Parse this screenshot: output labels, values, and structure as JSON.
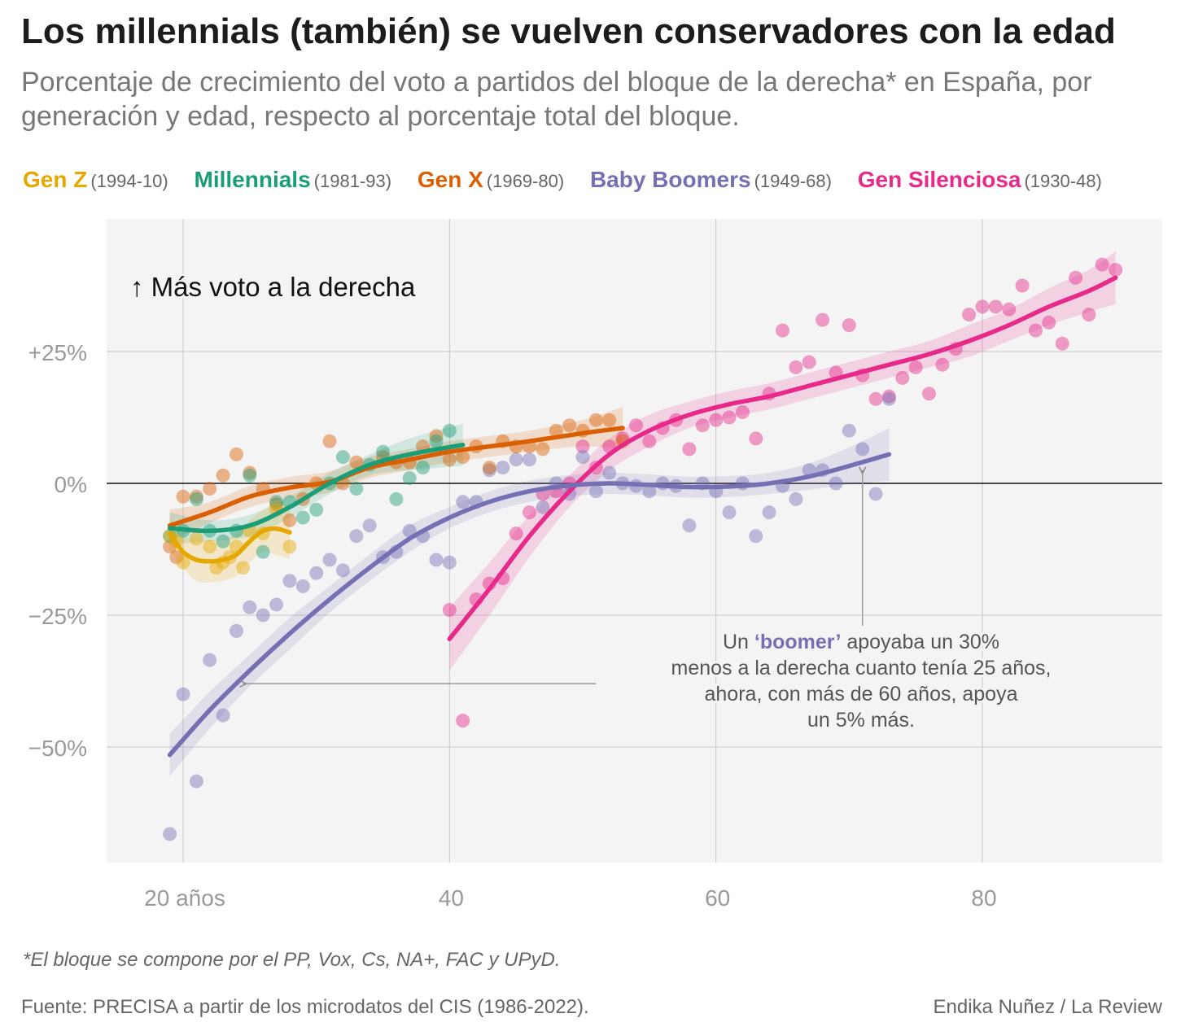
{
  "header": {
    "title": "Los millennials (también) se vuelven conservadores con la edad",
    "subtitle": "Porcentaje de crecimiento del voto a partidos del bloque de la derecha* en España, por generación y edad, respecto al porcentaje total del bloque."
  },
  "legend": [
    {
      "name": "Gen Z",
      "years": "(1994-10)",
      "color": "#e6a800"
    },
    {
      "name": "Millennials",
      "years": "(1981-93)",
      "color": "#1b9e77"
    },
    {
      "name": "Gen X",
      "years": "(1969-80)",
      "color": "#d95f02"
    },
    {
      "name": "Baby Boomers",
      "years": "(1949-68)",
      "color": "#7570b3"
    },
    {
      "name": "Gen Silenciosa",
      "years": "(1930-48)",
      "color": "#e7298a"
    }
  ],
  "chart_data": {
    "type": "scatter",
    "xlim": [
      15.6,
      93
    ],
    "ylim": [
      -72,
      50.5
    ],
    "x_ticks": [
      {
        "value": 20,
        "label": "20 años"
      },
      {
        "value": 40,
        "label": "40"
      },
      {
        "value": 60,
        "label": "60"
      },
      {
        "value": 80,
        "label": "80"
      }
    ],
    "y_ticks": [
      {
        "value": 25,
        "label": "+25%"
      },
      {
        "value": 0,
        "label": "0%"
      },
      {
        "value": -25,
        "label": "−25%"
      },
      {
        "value": -50,
        "label": "−50%"
      }
    ],
    "grid": true,
    "zero_line": true,
    "annotation_top": "↑ Más voto a la derecha",
    "annotation": {
      "lines": [
        [
          "Un ",
          "‘boomer’",
          " apoyaba un 30%"
        ],
        [
          "menos a la derecha cuanto tenía 25 años,"
        ],
        [
          "ahora, con más de 60 años, apoya"
        ],
        [
          "un 5% más."
        ]
      ],
      "arrow_left": {
        "from": [
          51,
          -38
        ],
        "to": [
          24.5,
          -38
        ]
      },
      "arrow_up": {
        "from": [
          71,
          -27
        ],
        "to": [
          71,
          2.5
        ]
      }
    },
    "series": [
      {
        "name": "Gen Z",
        "color": "#e6a800",
        "points": [
          [
            19,
            -10
          ],
          [
            19.5,
            -11
          ],
          [
            20,
            -15
          ],
          [
            21,
            -10.5
          ],
          [
            22,
            -12
          ],
          [
            22.5,
            -16
          ],
          [
            23,
            -15
          ],
          [
            23.5,
            -14
          ],
          [
            24,
            -12
          ],
          [
            24.5,
            -16
          ],
          [
            25,
            -9
          ],
          [
            26,
            -9.5
          ],
          [
            27,
            -5
          ],
          [
            28,
            -12
          ]
        ],
        "trend": [
          [
            19,
            -9.5
          ],
          [
            20,
            -13
          ],
          [
            21,
            -14.5
          ],
          [
            22,
            -14.8
          ],
          [
            23,
            -14.5
          ],
          [
            24,
            -13.5
          ],
          [
            25,
            -11
          ],
          [
            26,
            -9
          ],
          [
            27,
            -8.6
          ],
          [
            28,
            -9.3
          ]
        ],
        "band": [
          3,
          3,
          4,
          4,
          4,
          4,
          4,
          4,
          5,
          5
        ]
      },
      {
        "name": "Millennials",
        "color": "#1b9e77",
        "points": [
          [
            19,
            -10
          ],
          [
            20,
            -9
          ],
          [
            21,
            -3
          ],
          [
            22,
            -9
          ],
          [
            23,
            -11
          ],
          [
            24,
            -9
          ],
          [
            25,
            1.5
          ],
          [
            26,
            -13
          ],
          [
            27,
            -3.5
          ],
          [
            28,
            -3.5
          ],
          [
            29,
            -6.5
          ],
          [
            30,
            -5
          ],
          [
            31,
            0
          ],
          [
            32,
            5
          ],
          [
            33,
            -1
          ],
          [
            34,
            3.5
          ],
          [
            35,
            6
          ],
          [
            36,
            -3
          ],
          [
            37,
            1
          ],
          [
            38,
            3
          ],
          [
            39,
            8
          ],
          [
            40,
            10
          ]
        ],
        "trend": [
          [
            19,
            -8.5
          ],
          [
            22,
            -9
          ],
          [
            25,
            -8
          ],
          [
            28,
            -4.5
          ],
          [
            31,
            0
          ],
          [
            34,
            3.5
          ],
          [
            37,
            5.5
          ],
          [
            41,
            7.3
          ]
        ],
        "band": [
          3,
          2,
          2,
          2,
          2,
          2,
          3,
          4
        ]
      },
      {
        "name": "Gen X",
        "color": "#d95f02",
        "points": [
          [
            19,
            -12
          ],
          [
            19.5,
            -14
          ],
          [
            20,
            -2.5
          ],
          [
            21,
            -2.5
          ],
          [
            22,
            -1
          ],
          [
            23,
            1.5
          ],
          [
            24,
            5.5
          ],
          [
            25,
            2
          ],
          [
            26,
            -1
          ],
          [
            27,
            -4
          ],
          [
            28,
            -7
          ],
          [
            29,
            -3
          ],
          [
            30,
            0
          ],
          [
            31,
            8
          ],
          [
            32,
            0
          ],
          [
            33,
            4
          ],
          [
            35,
            5
          ],
          [
            36,
            4
          ],
          [
            37,
            4
          ],
          [
            38,
            7
          ],
          [
            39,
            9
          ],
          [
            40,
            4.5
          ],
          [
            41,
            5
          ],
          [
            42,
            7
          ],
          [
            43,
            3
          ],
          [
            44,
            8
          ],
          [
            45,
            7
          ],
          [
            46,
            7
          ],
          [
            47,
            6.5
          ],
          [
            48,
            10
          ],
          [
            49,
            11
          ],
          [
            50,
            10
          ],
          [
            51,
            12
          ],
          [
            52,
            12
          ],
          [
            53,
            8
          ]
        ],
        "trend": [
          [
            19,
            -8
          ],
          [
            22,
            -5.5
          ],
          [
            25,
            -2.5
          ],
          [
            28,
            -0.8
          ],
          [
            31,
            0.3
          ],
          [
            34,
            3
          ],
          [
            37,
            4.5
          ],
          [
            40,
            6
          ],
          [
            43,
            7
          ],
          [
            46,
            8
          ],
          [
            50,
            9.5
          ],
          [
            53,
            10.5
          ]
        ],
        "band": [
          3,
          2,
          2,
          2,
          2,
          2,
          2,
          2,
          2,
          2,
          2.5,
          4
        ]
      },
      {
        "name": "Baby Boomers",
        "color": "#7570b3",
        "points": [
          [
            19,
            -66.5
          ],
          [
            20,
            -40
          ],
          [
            21,
            -56.5
          ],
          [
            22,
            -33.5
          ],
          [
            23,
            -44
          ],
          [
            24,
            -28
          ],
          [
            25,
            -23.5
          ],
          [
            26,
            -25
          ],
          [
            27,
            -23
          ],
          [
            28,
            -18.5
          ],
          [
            29,
            -19.5
          ],
          [
            30,
            -17
          ],
          [
            31,
            -14.5
          ],
          [
            32,
            -16.5
          ],
          [
            33,
            -10
          ],
          [
            34,
            -8
          ],
          [
            35,
            -14
          ],
          [
            36,
            -13
          ],
          [
            37,
            -9
          ],
          [
            38,
            -10
          ],
          [
            39,
            -14.5
          ],
          [
            40,
            -15
          ],
          [
            41,
            -3.5
          ],
          [
            42,
            -3.5
          ],
          [
            43,
            2.5
          ],
          [
            44,
            3
          ],
          [
            45,
            4.5
          ],
          [
            46,
            4.5
          ],
          [
            47,
            -4.5
          ],
          [
            48,
            0
          ],
          [
            49,
            -2
          ],
          [
            50,
            5
          ],
          [
            51,
            -1.5
          ],
          [
            52,
            2
          ],
          [
            53,
            0
          ],
          [
            54,
            -0.5
          ],
          [
            55,
            -1.5
          ],
          [
            56,
            0
          ],
          [
            57,
            -0.5
          ],
          [
            58,
            -8
          ],
          [
            59,
            0
          ],
          [
            60,
            -1.5
          ],
          [
            61,
            -5.5
          ],
          [
            62,
            0
          ],
          [
            63,
            -10
          ],
          [
            64,
            -5.5
          ],
          [
            65,
            -0.5
          ],
          [
            66,
            -3
          ],
          [
            67,
            2.5
          ],
          [
            68,
            2.5
          ],
          [
            69,
            0
          ],
          [
            70,
            10
          ],
          [
            71,
            6.5
          ],
          [
            72,
            -2
          ],
          [
            73,
            16
          ]
        ],
        "trend": [
          [
            19,
            -51.5
          ],
          [
            22,
            -43
          ],
          [
            25,
            -35.5
          ],
          [
            28,
            -28.5
          ],
          [
            31,
            -22
          ],
          [
            34,
            -16
          ],
          [
            37,
            -10.5
          ],
          [
            40,
            -6.5
          ],
          [
            43,
            -3.5
          ],
          [
            46,
            -1.5
          ],
          [
            49,
            -0.4
          ],
          [
            52,
            0
          ],
          [
            55,
            -0.3
          ],
          [
            58,
            -0.7
          ],
          [
            61,
            -0.6
          ],
          [
            64,
            0
          ],
          [
            67,
            1.3
          ],
          [
            70,
            3.3
          ],
          [
            73,
            5.5
          ]
        ],
        "band": [
          4,
          3.5,
          3,
          3,
          2.5,
          2.5,
          2.5,
          2,
          2,
          2,
          2,
          2,
          2,
          2,
          2,
          2,
          2.5,
          3.5,
          5
        ]
      },
      {
        "name": "Gen Silenciosa",
        "color": "#e7298a",
        "points": [
          [
            40,
            -24
          ],
          [
            41,
            -45
          ],
          [
            42,
            -22
          ],
          [
            43,
            -19
          ],
          [
            44,
            -18
          ],
          [
            45,
            -9.5
          ],
          [
            46,
            -5.5
          ],
          [
            47,
            -2
          ],
          [
            48,
            -1.5
          ],
          [
            49,
            0
          ],
          [
            50,
            7
          ],
          [
            51,
            3
          ],
          [
            52,
            7
          ],
          [
            53,
            8.5
          ],
          [
            54,
            11
          ],
          [
            55,
            8
          ],
          [
            56,
            10.5
          ],
          [
            57,
            12
          ],
          [
            58,
            6.5
          ],
          [
            59,
            11
          ],
          [
            60,
            12
          ],
          [
            61,
            12.5
          ],
          [
            62,
            13.5
          ],
          [
            63,
            8.5
          ],
          [
            64,
            17
          ],
          [
            65,
            29
          ],
          [
            66,
            22
          ],
          [
            67,
            23
          ],
          [
            68,
            31
          ],
          [
            69,
            21
          ],
          [
            70,
            30
          ],
          [
            71,
            20.5
          ],
          [
            72,
            16
          ],
          [
            73,
            16.5
          ],
          [
            74,
            20
          ],
          [
            75,
            22
          ],
          [
            76,
            17
          ],
          [
            77,
            22.5
          ],
          [
            78,
            25.5
          ],
          [
            79,
            32
          ],
          [
            80,
            33.5
          ],
          [
            81,
            33.5
          ],
          [
            82,
            33
          ],
          [
            83,
            37.5
          ],
          [
            84,
            29
          ],
          [
            85,
            30.5
          ],
          [
            86,
            26.5
          ],
          [
            87,
            39
          ],
          [
            88,
            32
          ],
          [
            89,
            41.5
          ],
          [
            90,
            40.5
          ]
        ],
        "trend": [
          [
            40,
            -29.5
          ],
          [
            43,
            -20
          ],
          [
            46,
            -10
          ],
          [
            49,
            -1.5
          ],
          [
            52,
            5.5
          ],
          [
            55,
            10
          ],
          [
            58,
            13
          ],
          [
            61,
            15
          ],
          [
            64,
            16.5
          ],
          [
            67,
            18.5
          ],
          [
            70,
            20.5
          ],
          [
            73,
            22.5
          ],
          [
            76,
            24.5
          ],
          [
            79,
            27
          ],
          [
            82,
            30
          ],
          [
            85,
            33.5
          ],
          [
            88,
            36.5
          ],
          [
            90,
            39
          ]
        ],
        "band": [
          6,
          5,
          4,
          3,
          3,
          3,
          2.5,
          2.5,
          2.5,
          2.5,
          2.5,
          2.5,
          2.5,
          3,
          3,
          3.5,
          4,
          5
        ]
      }
    ]
  },
  "footer": {
    "footnote": "*El bloque se compone por el PP, Vox, Cs, NA+, FAC y UPyD.",
    "source": "Fuente: PRECISA a partir de los microdatos del CIS (1986-2022).",
    "credit": "Endika Nuñez / La Review"
  }
}
